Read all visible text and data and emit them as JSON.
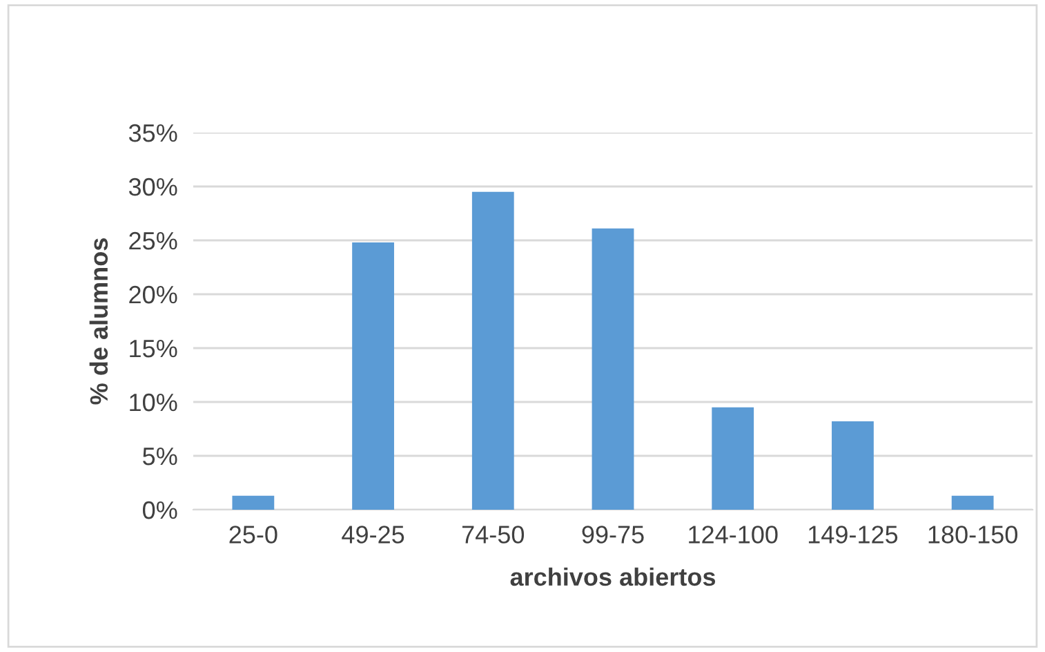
{
  "chart_data": {
    "type": "bar",
    "xlabel": "archivos abiertos",
    "ylabel": "% de alumnos",
    "categories": [
      "25-0",
      "49-25",
      "74-50",
      "99-75",
      "124-100",
      "149-125",
      "180-150"
    ],
    "values": [
      1.3,
      24.8,
      29.5,
      26.1,
      9.5,
      8.2,
      1.3
    ],
    "color": "#5b9bd5",
    "ylim": [
      0,
      35
    ],
    "yticks": [
      {
        "value": 0,
        "label": "0%"
      },
      {
        "value": 5,
        "label": "5%"
      },
      {
        "value": 10,
        "label": "10%"
      },
      {
        "value": 15,
        "label": "15%"
      },
      {
        "value": 20,
        "label": "20%"
      },
      {
        "value": 25,
        "label": "25%"
      },
      {
        "value": 30,
        "label": "30%"
      },
      {
        "value": 35,
        "label": "35%"
      }
    ],
    "grid": "y",
    "legend": false
  }
}
